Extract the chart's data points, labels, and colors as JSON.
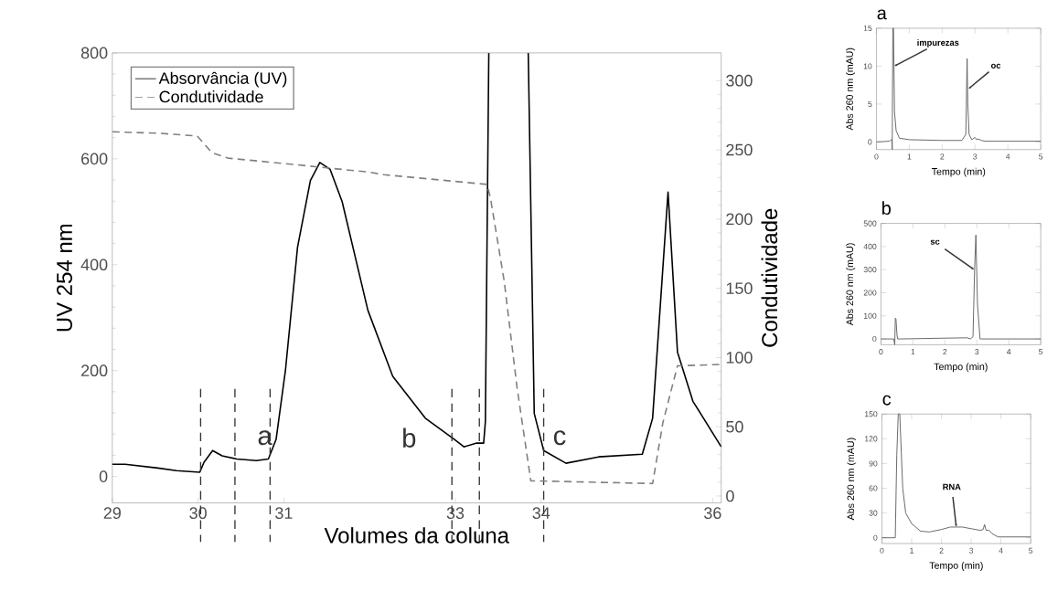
{
  "chart_data": [
    {
      "type": "line",
      "xlabel": "Volumes da coluna",
      "ylabel": "UV 254 nm",
      "y2label": "Condutividade",
      "xlim": [
        29,
        36.1
      ],
      "xticks": [
        29,
        30,
        31,
        33,
        34,
        36
      ],
      "ylim": [
        -50,
        800
      ],
      "yticks": [
        0,
        200,
        400,
        600,
        800
      ],
      "y2lim": [
        -5,
        320
      ],
      "y2ticks": [
        0,
        50,
        100,
        150,
        200,
        250,
        300
      ],
      "legend": "top left",
      "series": [
        {
          "name": "Absorvância (UV)",
          "color": "#000000",
          "line_style": "solid",
          "x": [
            29.0,
            29.15,
            29.53,
            29.75,
            30.02,
            30.07,
            30.17,
            30.28,
            30.45,
            30.68,
            30.82,
            30.91,
            31.02,
            31.16,
            31.31,
            31.42,
            31.54,
            31.68,
            31.98,
            32.27,
            32.65,
            32.99,
            33.1,
            33.25,
            33.33,
            33.35,
            33.39,
            33.62,
            33.85,
            33.92,
            34.03,
            34.29,
            34.67,
            35.18,
            35.3,
            35.48,
            35.59,
            35.77,
            36.1
          ],
          "values": [
            23,
            23,
            16,
            11,
            8,
            27,
            49,
            39,
            33,
            30,
            33,
            70,
            202,
            433,
            559,
            593,
            580,
            519,
            314,
            189,
            110,
            70,
            56,
            63,
            63,
            103,
            800,
            null,
            800,
            119,
            49,
            25,
            37,
            42,
            110,
            537,
            235,
            142,
            56
          ]
        },
        {
          "name": "Condutividade",
          "color": "#808080",
          "line_style": "dashed",
          "axis": "y2",
          "x": [
            29.0,
            29.53,
            29.99,
            30.16,
            30.35,
            31.02,
            31.98,
            32.17,
            33.37,
            33.41,
            33.57,
            33.72,
            33.88,
            35.3,
            35.42,
            35.59,
            36.1
          ],
          "values": [
            263,
            262,
            260,
            248,
            244,
            240,
            234,
            232,
            225,
            215,
            155,
            78,
            11,
            9,
            53,
            94,
            95
          ]
        }
      ],
      "ref_lines": [
        {
          "axis": "x",
          "value": 30.03
        },
        {
          "axis": "x",
          "value": 30.43
        },
        {
          "axis": "x",
          "value": 30.84
        },
        {
          "axis": "x",
          "value": 32.96
        },
        {
          "axis": "x",
          "value": 33.28
        },
        {
          "axis": "x",
          "value": 34.03
        }
      ],
      "annotations": [
        "a",
        "b",
        "c"
      ]
    },
    {
      "type": "line",
      "title": "a",
      "xlabel": "Tempo (min)",
      "ylabel": "Abs 260 nm (mAU)",
      "xlim": [
        0,
        5
      ],
      "xticks": [
        0,
        1,
        2,
        3,
        4,
        5
      ],
      "ylim": [
        -1,
        15
      ],
      "yticks": [
        0,
        5,
        10,
        15
      ],
      "series": [
        {
          "color": "#606060",
          "x": [
            0,
            0.4,
            0.45,
            0.47,
            0.48,
            0.5,
            0.52,
            0.55,
            0.6,
            0.7,
            1.0,
            2.0,
            2.6,
            2.72,
            2.76,
            2.78,
            2.82,
            2.9,
            3.0,
            3.05,
            3.1,
            3.2,
            3.3,
            4.0,
            5.0
          ],
          "values": [
            0,
            0.1,
            0.3,
            0.3,
            -1,
            15,
            15,
            4,
            1.5,
            0.5,
            0.3,
            0.2,
            0.2,
            1,
            11,
            5,
            1,
            0.3,
            0.6,
            0.3,
            0.4,
            0.2,
            0.1,
            0.1,
            0.1
          ]
        }
      ],
      "annotations": [
        {
          "text": "impurezas",
          "x": 0.54,
          "y": 10
        },
        {
          "text": "oc",
          "x": 2.8,
          "y": 7
        }
      ]
    },
    {
      "type": "line",
      "title": "b",
      "xlabel": "Tempo (min)",
      "ylabel": "Abs 260 nm (mAU)",
      "xlim": [
        0,
        5
      ],
      "xticks": [
        0,
        1,
        2,
        3,
        4,
        5
      ],
      "ylim": [
        -25,
        500
      ],
      "yticks": [
        0,
        100,
        200,
        300,
        400,
        500
      ],
      "series": [
        {
          "color": "#606060",
          "x": [
            0,
            0.4,
            0.43,
            0.45,
            0.47,
            0.5,
            0.52,
            0.6,
            2.7,
            2.8,
            2.88,
            2.93,
            2.97,
            3.02,
            3.1,
            5
          ],
          "values": [
            0,
            0,
            -25,
            90,
            85,
            20,
            0,
            0,
            5,
            0,
            10,
            300,
            450,
            150,
            0,
            0
          ]
        }
      ],
      "annotations": [
        {
          "text": "sc",
          "x": 2.92,
          "y": 300
        }
      ]
    },
    {
      "type": "line",
      "title": "c",
      "xlabel": "Tempo (min)",
      "ylabel": "Abs 260 nm (mAU)",
      "xlim": [
        0,
        5
      ],
      "xticks": [
        0,
        1,
        2,
        3,
        4,
        5
      ],
      "ylim": [
        -7,
        150
      ],
      "yticks": [
        0,
        30,
        60,
        90,
        120,
        150
      ],
      "series": [
        {
          "color": "#606060",
          "x": [
            0,
            0.45,
            0.5,
            0.55,
            0.6,
            0.7,
            0.8,
            1.0,
            1.3,
            1.6,
            2.0,
            2.3,
            2.7,
            3.0,
            3.3,
            3.4,
            3.45,
            3.5,
            3.6,
            3.7,
            3.9,
            4.0,
            5.0
          ],
          "values": [
            0,
            0,
            100,
            150,
            150,
            60,
            30,
            17,
            8,
            7,
            10,
            13,
            13,
            11,
            9,
            10,
            16,
            9,
            9,
            5,
            1,
            1,
            1
          ]
        }
      ],
      "annotations": [
        {
          "text": "RNA",
          "x": 2.5,
          "y": 13
        }
      ]
    }
  ]
}
